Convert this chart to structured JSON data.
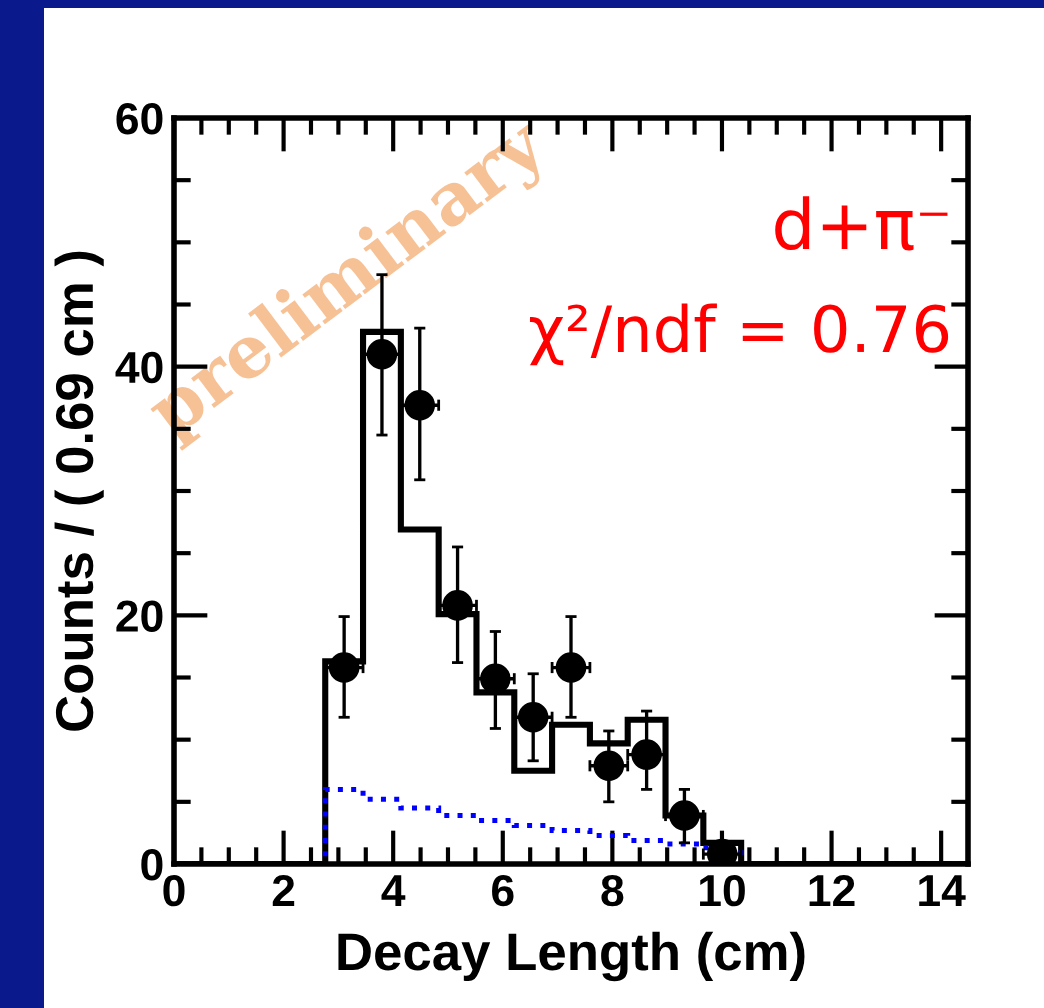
{
  "chart_data": {
    "type": "histogram",
    "xlabel": "Decay Length (cm)",
    "ylabel": "Counts / ( 0.69 cm )",
    "bins": [
      0,
      0.69,
      1.38,
      2.07,
      2.76,
      3.45,
      4.14,
      4.83,
      5.52,
      6.21,
      6.9,
      7.59,
      8.28,
      8.97,
      9.66,
      10.35,
      11.04,
      11.73,
      12.42,
      13.11,
      13.8,
      14.49
    ],
    "series": [
      {
        "color": "#000000",
        "line_style": "solid",
        "values": [
          0,
          0,
          0,
          0,
          16.3,
          42.8,
          26.9,
          20.1,
          13.8,
          7.5,
          11.2,
          9.7,
          11.6,
          3.9,
          1.7,
          0,
          0,
          0,
          0,
          0,
          0
        ]
      },
      {
        "type": "histogram",
        "color": "#0000ff",
        "line_style": "dotted",
        "values": [
          0,
          0,
          0,
          0,
          6.0,
          5.2,
          4.5,
          3.9,
          3.5,
          3.1,
          2.7,
          2.3,
          1.9,
          1.6,
          1.3,
          0,
          0,
          0,
          0,
          0,
          0
        ]
      },
      {
        "type": "scatter",
        "color": "#000000",
        "marker": "circle",
        "x": [
          3.105,
          3.795,
          4.485,
          5.175,
          5.865,
          6.555,
          7.245,
          7.935,
          8.625,
          9.315,
          10.005
        ],
        "values": [
          15.8,
          41.0,
          36.9,
          20.8,
          14.9,
          11.8,
          15.8,
          7.9,
          8.8,
          3.9,
          0.8
        ],
        "errors": [
          [
            11.8,
            19.9
          ],
          [
            34.5,
            47.4
          ],
          [
            30.9,
            43.1
          ],
          [
            16.2,
            25.5
          ],
          [
            10.9,
            18.7
          ],
          [
            8.3,
            15.3
          ],
          [
            11.8,
            19.9
          ],
          [
            5.0,
            10.7
          ],
          [
            6.0,
            12.3
          ],
          [
            1.7,
            6.0
          ],
          null
        ],
        "xerrors": [
          0.345,
          0.345,
          0.345,
          0.345,
          0.345,
          0.345,
          0.345,
          0.345,
          0.345,
          0.345,
          0.345
        ]
      }
    ],
    "xlim": [
      0,
      14.49
    ],
    "ylim": [
      0,
      60
    ],
    "xticks": [
      0,
      2,
      4,
      6,
      8,
      10,
      12,
      14
    ],
    "yticks": [
      0,
      20,
      40,
      60
    ],
    "annotations": [
      "d+π⁻",
      "χ²/ndf = 0.76",
      "preliminary"
    ]
  }
}
